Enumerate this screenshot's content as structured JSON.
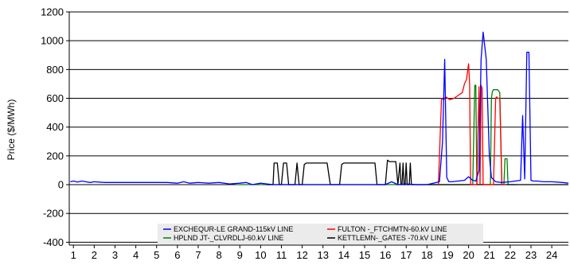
{
  "chart_data": {
    "type": "line",
    "title": "",
    "xlabel": "",
    "ylabel": "Price ($/MWh)",
    "xlim": [
      0.8,
      24.8
    ],
    "ylim": [
      -420,
      1200
    ],
    "x_ticks": [
      1,
      2,
      3,
      4,
      5,
      6,
      7,
      8,
      9,
      10,
      11,
      12,
      13,
      14,
      15,
      16,
      17,
      18,
      19,
      20,
      21,
      22,
      23,
      24
    ],
    "y_ticks": [
      -400,
      -200,
      0,
      200,
      400,
      600,
      800,
      1000,
      1200
    ],
    "grid": "horizontal",
    "legend_position": "bottom-center",
    "series": [
      {
        "name": "EXCHEQUR-LE GRAND-115kV LINE",
        "color": "#0000ff",
        "x": [
          0.85,
          1.0,
          1.2,
          1.4,
          1.6,
          1.8,
          2.0,
          2.5,
          3.0,
          3.5,
          4.0,
          4.5,
          5.0,
          5.5,
          6.0,
          6.3,
          6.6,
          7.0,
          7.5,
          8.0,
          8.5,
          9.0,
          9.3,
          9.6,
          10.0,
          10.3,
          10.6,
          11.0,
          12.0,
          13.0,
          14.0,
          15.0,
          16.0,
          16.3,
          16.6,
          17.0,
          17.5,
          18.0,
          18.3,
          18.6,
          18.75,
          18.85,
          18.95,
          19.05,
          19.2,
          19.5,
          19.8,
          20.0,
          20.2,
          20.35,
          20.5,
          20.6,
          20.7,
          20.85,
          21.0,
          21.1,
          21.3,
          21.6,
          22.0,
          22.5,
          22.6,
          22.7,
          22.8,
          22.9,
          23.0,
          23.1,
          23.3,
          23.6,
          24.0,
          24.5,
          24.8
        ],
        "y": [
          20,
          25,
          18,
          25,
          20,
          15,
          20,
          15,
          15,
          15,
          15,
          15,
          15,
          15,
          10,
          20,
          10,
          15,
          10,
          15,
          5,
          10,
          15,
          0,
          10,
          5,
          0,
          0,
          0,
          0,
          0,
          0,
          0,
          20,
          0,
          5,
          0,
          0,
          10,
          20,
          300,
          870,
          50,
          20,
          20,
          25,
          30,
          55,
          30,
          25,
          100,
          870,
          1060,
          870,
          200,
          50,
          20,
          15,
          20,
          30,
          480,
          40,
          920,
          920,
          30,
          25,
          25,
          20,
          20,
          15,
          10
        ]
      },
      {
        "name": "FULTON -_FTCHMTN-60.kV LINE",
        "color": "#ff0000",
        "x": [
          18.55,
          18.7,
          18.8,
          18.9,
          19.0,
          19.1,
          19.3,
          19.5,
          19.7,
          19.8,
          19.9,
          20.0,
          20.05,
          20.1,
          20.2,
          20.3,
          20.4,
          20.5,
          20.55,
          20.6,
          20.65,
          20.7,
          20.8,
          20.9,
          21.0,
          21.1,
          21.2,
          21.3,
          21.35,
          21.4,
          21.5,
          21.6,
          21.7,
          21.8
        ],
        "y": [
          0,
          600,
          590,
          610,
          600,
          590,
          600,
          620,
          640,
          700,
          730,
          840,
          700,
          0,
          0,
          0,
          0,
          680,
          0,
          690,
          670,
          0,
          0,
          0,
          0,
          0,
          0,
          600,
          610,
          600,
          600,
          0,
          0,
          0
        ]
      },
      {
        "name": "HPLND JT-_CLVRDLJ-60.kV LINE",
        "color": "#008000",
        "x": [
          8.8,
          9.0,
          9.5,
          10.0,
          10.5,
          11.0,
          12.0,
          13.0,
          14.0,
          15.0,
          16.0,
          16.5,
          17.0,
          17.5,
          18.0,
          18.5,
          19.0,
          19.5,
          20.0,
          20.2,
          20.3,
          20.35,
          20.4,
          20.5,
          20.55,
          20.6,
          20.7,
          20.8,
          20.9,
          21.0,
          21.05,
          21.1,
          21.15,
          21.2,
          21.3,
          21.4,
          21.5,
          21.6,
          21.7,
          21.75,
          21.8,
          21.85,
          21.9,
          22.0,
          22.3
        ],
        "y": [
          0,
          0,
          0,
          0,
          0,
          0,
          0,
          0,
          0,
          0,
          0,
          0,
          0,
          0,
          0,
          0,
          0,
          0,
          0,
          0,
          690,
          690,
          0,
          0,
          0,
          0,
          0,
          0,
          0,
          0,
          0,
          600,
          650,
          660,
          660,
          660,
          640,
          0,
          0,
          180,
          180,
          180,
          0,
          0,
          0
        ]
      },
      {
        "name": "KETTLEMN-_GATES -70.kV LINE",
        "color": "#000000",
        "x": [
          10.3,
          10.6,
          10.65,
          10.8,
          10.9,
          11.0,
          11.1,
          11.25,
          11.35,
          11.5,
          11.65,
          11.75,
          11.85,
          12.0,
          12.1,
          12.2,
          12.3,
          12.5,
          13.0,
          13.2,
          13.35,
          13.5,
          13.6,
          13.8,
          13.9,
          14.0,
          14.5,
          15.0,
          15.5,
          15.6,
          15.8,
          16.0,
          16.1,
          16.2,
          16.5,
          16.6,
          16.7,
          16.75,
          16.8,
          16.85,
          16.9,
          16.95,
          17.0,
          17.05,
          17.1,
          17.15,
          17.2,
          17.25,
          17.3,
          20.3,
          20.5,
          24.8
        ],
        "y": [
          0,
          0,
          150,
          150,
          0,
          0,
          150,
          150,
          0,
          0,
          0,
          150,
          0,
          0,
          140,
          150,
          150,
          150,
          150,
          150,
          0,
          0,
          0,
          0,
          140,
          150,
          150,
          150,
          150,
          0,
          0,
          0,
          170,
          160,
          160,
          0,
          150,
          0,
          0,
          150,
          0,
          0,
          150,
          0,
          0,
          0,
          150,
          0,
          0,
          0,
          0,
          0
        ]
      }
    ]
  }
}
